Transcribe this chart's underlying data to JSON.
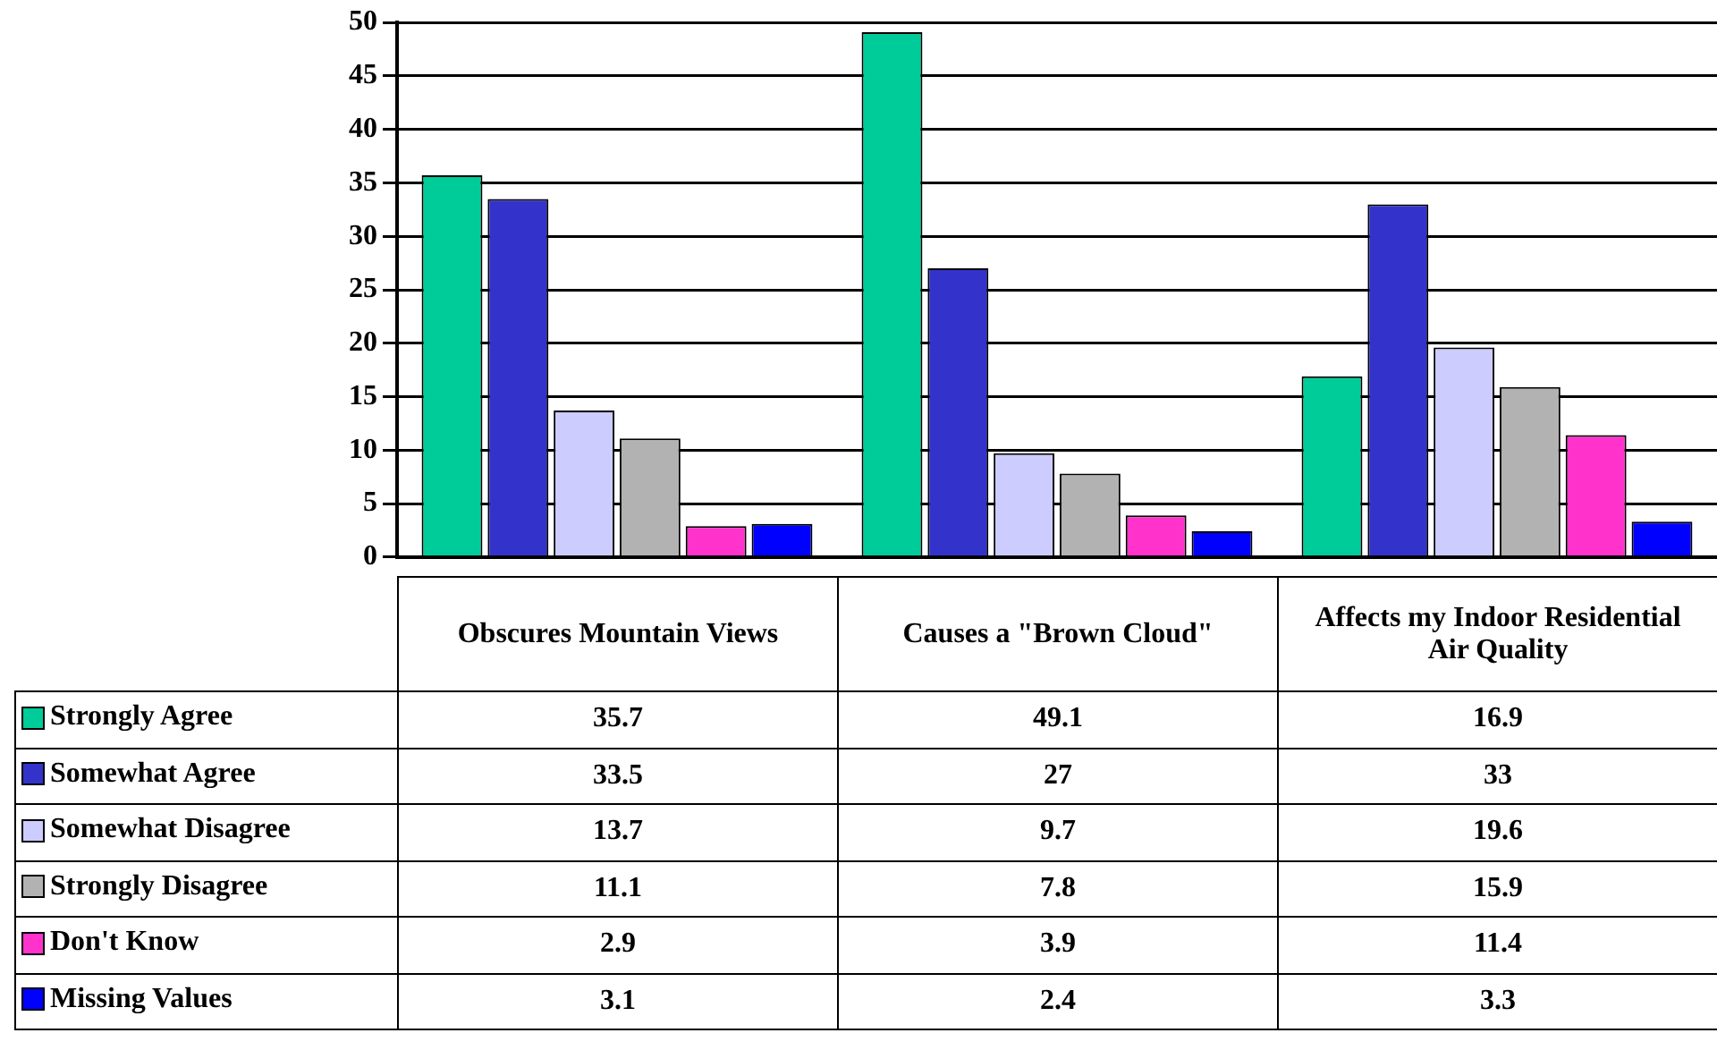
{
  "chart_data": {
    "type": "bar",
    "categories": [
      "Obscures Mountain Views",
      "Causes a \"Brown Cloud\"",
      "Affects my Indoor Residential Air Quality"
    ],
    "series": [
      {
        "name": "Strongly Agree",
        "color": "#00cc99",
        "values": [
          35.7,
          49.1,
          16.9
        ]
      },
      {
        "name": "Somewhat Agree",
        "color": "#3333cc",
        "values": [
          33.5,
          27,
          33
        ]
      },
      {
        "name": "Somewhat Disagree",
        "color": "#ccccff",
        "values": [
          13.7,
          9.7,
          19.6
        ]
      },
      {
        "name": "Strongly Disagree",
        "color": "#b2b2b2",
        "values": [
          11.1,
          7.8,
          15.9
        ]
      },
      {
        "name": "Don't Know",
        "color": "#ff33cc",
        "values": [
          2.9,
          3.9,
          11.4
        ]
      },
      {
        "name": "Missing Values",
        "color": "#0000ff",
        "values": [
          3.1,
          2.4,
          3.3
        ]
      }
    ],
    "ylim": [
      0,
      50
    ],
    "yticks": [
      0,
      5,
      10,
      15,
      20,
      25,
      30,
      35,
      40,
      45,
      50
    ],
    "grid": "y",
    "legend": "bottom left",
    "data_labels": true
  }
}
